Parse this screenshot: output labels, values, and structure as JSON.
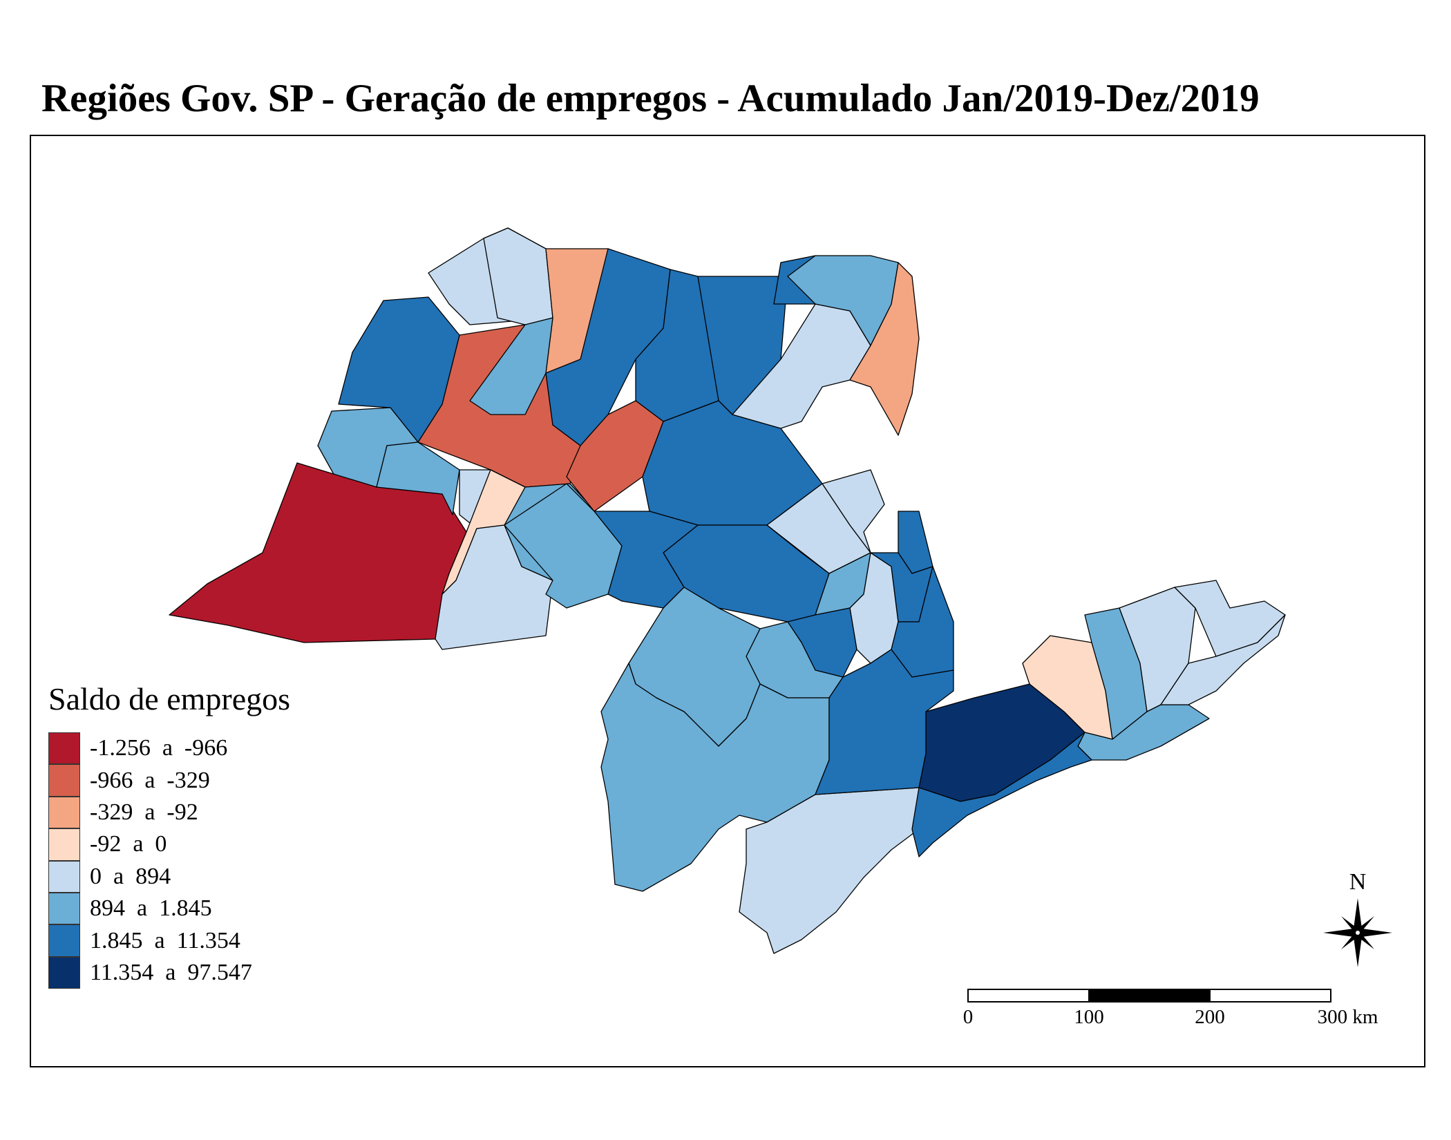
{
  "title": "Regiões Gov. SP - Geração de empregos - Acumulado Jan/2019-Dez/2019",
  "legend": {
    "title": "Saldo de empregos",
    "classes": [
      {
        "label": "-1.256  a  -966",
        "color": "#b2182b"
      },
      {
        "label": "-966  a  -329",
        "color": "#d6604d"
      },
      {
        "label": "-329  a  -92",
        "color": "#f4a582"
      },
      {
        "label": "-92  a  0",
        "color": "#fddbc7"
      },
      {
        "label": "0  a  894",
        "color": "#c6dbef"
      },
      {
        "label": "894  a  1.845",
        "color": "#6baed6"
      },
      {
        "label": "1.845  a  11.354",
        "color": "#2171b5"
      },
      {
        "label": "11.354  a  97.547",
        "color": "#08306b"
      }
    ]
  },
  "scale_bar": {
    "labels": [
      "0",
      "100",
      "200",
      "300  km"
    ],
    "values_km": [
      0,
      100,
      200,
      300
    ]
  },
  "north_arrow": {
    "label": "N",
    "icon": "compass-rose-icon"
  },
  "map": {
    "state": "SP",
    "regions": [
      {
        "id": "r1",
        "class": 4
      },
      {
        "id": "r2",
        "class": 4
      },
      {
        "id": "r3",
        "class": 1
      },
      {
        "id": "r4",
        "class": 6
      },
      {
        "id": "r5",
        "class": 5
      },
      {
        "id": "r6",
        "class": 0
      },
      {
        "id": "r7",
        "class": 5
      },
      {
        "id": "r8",
        "class": 6
      },
      {
        "id": "r9",
        "class": 2
      },
      {
        "id": "r10",
        "class": 5
      },
      {
        "id": "r11",
        "class": 4
      },
      {
        "id": "r12",
        "class": 5
      },
      {
        "id": "r13",
        "class": 6
      },
      {
        "id": "r14",
        "class": 6
      },
      {
        "id": "r15",
        "class": 1
      },
      {
        "id": "r16",
        "class": 3
      },
      {
        "id": "r17",
        "class": 4
      },
      {
        "id": "r18",
        "class": 5
      },
      {
        "id": "r19",
        "class": 6
      },
      {
        "id": "r20",
        "class": 4
      },
      {
        "id": "r21",
        "class": 2
      },
      {
        "id": "r22",
        "class": 6
      },
      {
        "id": "r23",
        "class": 5
      },
      {
        "id": "r24",
        "class": 4
      },
      {
        "id": "r25",
        "class": 6
      },
      {
        "id": "r26",
        "class": 6
      },
      {
        "id": "r27",
        "class": 4
      },
      {
        "id": "r28",
        "class": 5
      },
      {
        "id": "r29",
        "class": 4
      },
      {
        "id": "r30",
        "class": 6
      },
      {
        "id": "r31",
        "class": 5
      },
      {
        "id": "r32",
        "class": 5
      },
      {
        "id": "r33",
        "class": 6
      },
      {
        "id": "r34",
        "class": 6
      },
      {
        "id": "r35",
        "class": 7
      },
      {
        "id": "r36",
        "class": 3
      },
      {
        "id": "r37",
        "class": 5
      },
      {
        "id": "r38",
        "class": 4
      },
      {
        "id": "r39",
        "class": 6
      },
      {
        "id": "r40",
        "class": 4
      },
      {
        "id": "r41",
        "class": 5
      },
      {
        "id": "r42",
        "class": 5
      },
      {
        "id": "r43",
        "class": 4
      },
      {
        "id": "r44",
        "class": 6
      },
      {
        "id": "r45",
        "class": 4
      },
      {
        "id": "r46",
        "class": 6
      }
    ]
  }
}
